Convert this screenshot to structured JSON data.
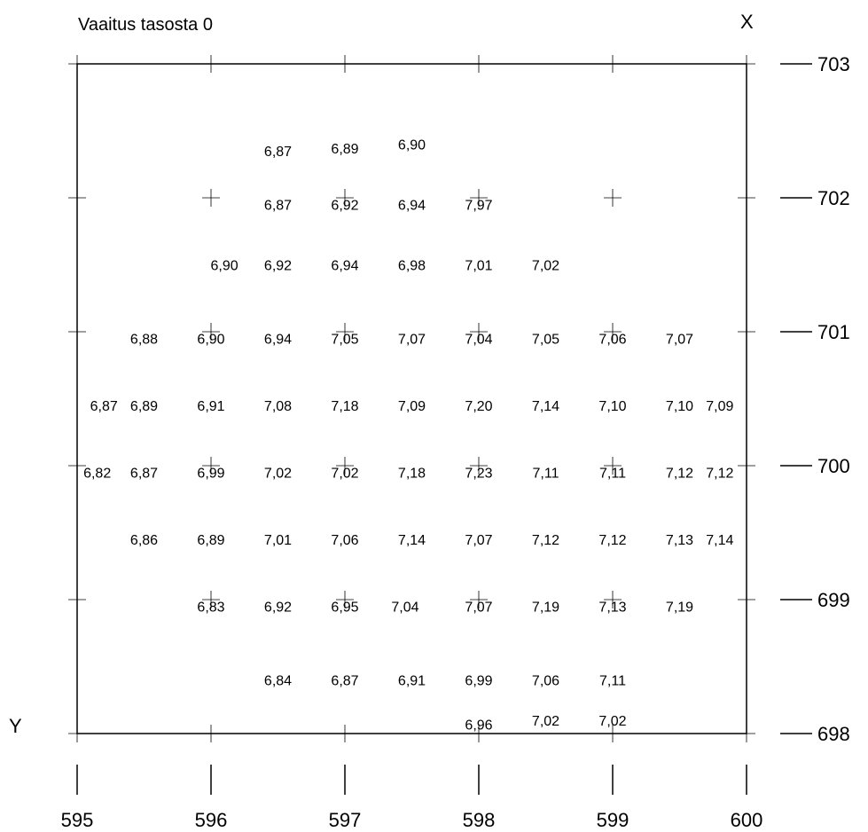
{
  "title": "Vaaitus tasosta 0",
  "x_axis_letter": "X",
  "y_axis_letter": "Y",
  "chart_data": {
    "type": "scatter",
    "title": "Vaaitus tasosta 0",
    "x_ticks": [
      "595",
      "596",
      "597",
      "598",
      "599",
      "600"
    ],
    "y_ticks": [
      "703",
      "702",
      "701",
      "700",
      "699",
      "698"
    ],
    "x_range": [
      595,
      600
    ],
    "y_range": [
      698,
      703
    ],
    "points": [
      {
        "e": 596.5,
        "n": 702.35,
        "label": "6,87"
      },
      {
        "e": 597.0,
        "n": 702.37,
        "label": "6,89"
      },
      {
        "e": 597.5,
        "n": 702.4,
        "label": "6,90"
      },
      {
        "e": 596.5,
        "n": 701.95,
        "label": "6,87"
      },
      {
        "e": 597.0,
        "n": 701.95,
        "label": "6,92"
      },
      {
        "e": 597.5,
        "n": 701.95,
        "label": "6,94"
      },
      {
        "e": 598.0,
        "n": 701.95,
        "label": "7,97"
      },
      {
        "e": 596.1,
        "n": 701.5,
        "label": "6,90"
      },
      {
        "e": 596.5,
        "n": 701.5,
        "label": "6,92"
      },
      {
        "e": 597.0,
        "n": 701.5,
        "label": "6,94"
      },
      {
        "e": 597.5,
        "n": 701.5,
        "label": "6,98"
      },
      {
        "e": 598.0,
        "n": 701.5,
        "label": "7,01"
      },
      {
        "e": 598.5,
        "n": 701.5,
        "label": "7,02"
      },
      {
        "e": 595.5,
        "n": 700.95,
        "label": "6,88"
      },
      {
        "e": 596.0,
        "n": 700.95,
        "label": "6,90"
      },
      {
        "e": 596.5,
        "n": 700.95,
        "label": "6,94"
      },
      {
        "e": 597.0,
        "n": 700.95,
        "label": "7,05"
      },
      {
        "e": 597.5,
        "n": 700.95,
        "label": "7,07"
      },
      {
        "e": 598.0,
        "n": 700.95,
        "label": "7,04"
      },
      {
        "e": 598.5,
        "n": 700.95,
        "label": "7,05"
      },
      {
        "e": 599.0,
        "n": 700.95,
        "label": "7,06"
      },
      {
        "e": 599.5,
        "n": 700.95,
        "label": "7,07"
      },
      {
        "e": 595.2,
        "n": 700.45,
        "label": "6,87"
      },
      {
        "e": 595.5,
        "n": 700.45,
        "label": "6,89"
      },
      {
        "e": 596.0,
        "n": 700.45,
        "label": "6,91"
      },
      {
        "e": 596.5,
        "n": 700.45,
        "label": "7,08"
      },
      {
        "e": 597.0,
        "n": 700.45,
        "label": "7,18"
      },
      {
        "e": 597.5,
        "n": 700.45,
        "label": "7,09"
      },
      {
        "e": 598.0,
        "n": 700.45,
        "label": "7,20"
      },
      {
        "e": 598.5,
        "n": 700.45,
        "label": "7,14"
      },
      {
        "e": 599.0,
        "n": 700.45,
        "label": "7,10"
      },
      {
        "e": 599.5,
        "n": 700.45,
        "label": "7,10"
      },
      {
        "e": 599.8,
        "n": 700.45,
        "label": "7,09"
      },
      {
        "e": 595.15,
        "n": 699.95,
        "label": "6,82"
      },
      {
        "e": 595.5,
        "n": 699.95,
        "label": "6,87"
      },
      {
        "e": 596.0,
        "n": 699.95,
        "label": "6,99"
      },
      {
        "e": 596.5,
        "n": 699.95,
        "label": "7,02"
      },
      {
        "e": 597.0,
        "n": 699.95,
        "label": "7,02"
      },
      {
        "e": 597.5,
        "n": 699.95,
        "label": "7,18"
      },
      {
        "e": 598.0,
        "n": 699.95,
        "label": "7,23"
      },
      {
        "e": 598.5,
        "n": 699.95,
        "label": "7,11"
      },
      {
        "e": 599.0,
        "n": 699.95,
        "label": "7,11"
      },
      {
        "e": 599.5,
        "n": 699.95,
        "label": "7,12"
      },
      {
        "e": 599.8,
        "n": 699.95,
        "label": "7,12"
      },
      {
        "e": 595.5,
        "n": 699.45,
        "label": "6,86"
      },
      {
        "e": 596.0,
        "n": 699.45,
        "label": "6,89"
      },
      {
        "e": 596.5,
        "n": 699.45,
        "label": "7,01"
      },
      {
        "e": 597.0,
        "n": 699.45,
        "label": "7,06"
      },
      {
        "e": 597.5,
        "n": 699.45,
        "label": "7,14"
      },
      {
        "e": 598.0,
        "n": 699.45,
        "label": "7,07"
      },
      {
        "e": 598.5,
        "n": 699.45,
        "label": "7,12"
      },
      {
        "e": 599.0,
        "n": 699.45,
        "label": "7,12"
      },
      {
        "e": 599.5,
        "n": 699.45,
        "label": "7,13"
      },
      {
        "e": 599.8,
        "n": 699.45,
        "label": "7,14"
      },
      {
        "e": 596.0,
        "n": 698.95,
        "label": "6,83"
      },
      {
        "e": 596.5,
        "n": 698.95,
        "label": "6,92"
      },
      {
        "e": 597.0,
        "n": 698.95,
        "label": "6,95"
      },
      {
        "e": 597.45,
        "n": 698.95,
        "label": "7,04"
      },
      {
        "e": 598.0,
        "n": 698.95,
        "label": "7,07"
      },
      {
        "e": 598.5,
        "n": 698.95,
        "label": "7,19"
      },
      {
        "e": 599.0,
        "n": 698.95,
        "label": "7,13"
      },
      {
        "e": 599.5,
        "n": 698.95,
        "label": "7,19"
      },
      {
        "e": 596.5,
        "n": 698.4,
        "label": "6,84"
      },
      {
        "e": 597.0,
        "n": 698.4,
        "label": "6,87"
      },
      {
        "e": 597.5,
        "n": 698.4,
        "label": "6,91"
      },
      {
        "e": 598.0,
        "n": 698.4,
        "label": "6,99"
      },
      {
        "e": 598.5,
        "n": 698.4,
        "label": "7,06"
      },
      {
        "e": 599.0,
        "n": 698.4,
        "label": "7,11"
      },
      {
        "e": 598.0,
        "n": 698.07,
        "label": "6,96"
      },
      {
        "e": 598.5,
        "n": 698.1,
        "label": "7,02"
      },
      {
        "e": 599.0,
        "n": 698.1,
        "label": "7,02"
      }
    ]
  }
}
